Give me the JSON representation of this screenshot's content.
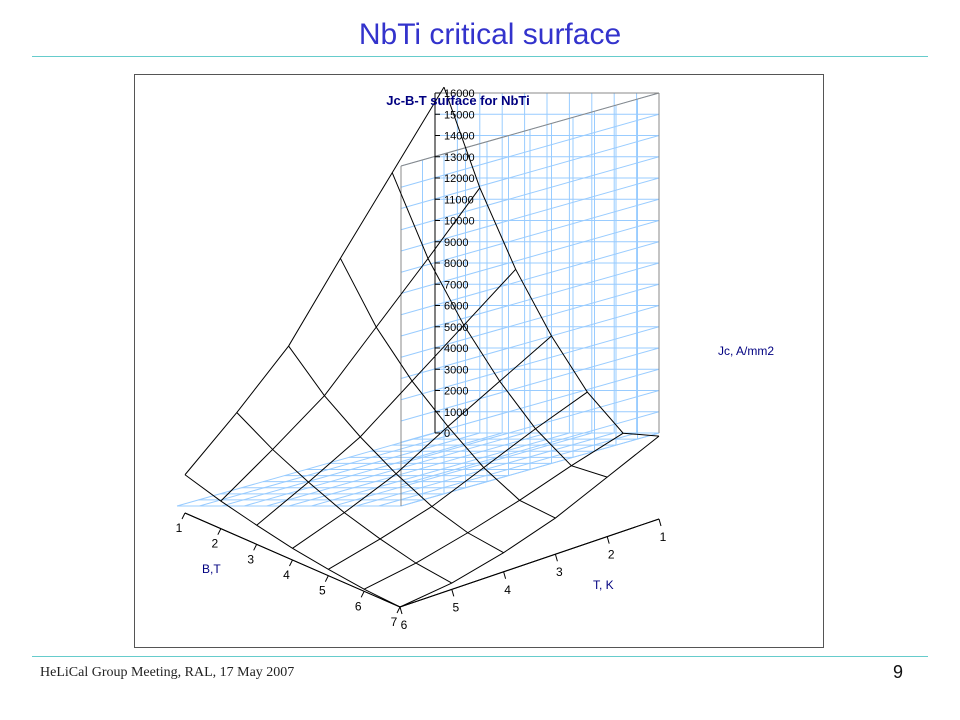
{
  "slide": {
    "title": "NbTi critical surface",
    "footer": "HeLiCal Group Meeting, RAL, 17 May 2007",
    "page_number": "9"
  },
  "colors": {
    "title": "#3333cc",
    "rule": "#66cccc",
    "grid": "#99ccff",
    "surface": "#000000",
    "axis": "#000000"
  },
  "chart_data": {
    "type": "surface",
    "title": "Jc-B-T surface for NbTi",
    "zlabel": "Jc, A/mm2",
    "xlabel": "T, K",
    "ylabel": "B,T",
    "zlim": [
      0,
      16000
    ],
    "z_ticks": [
      0,
      1000,
      2000,
      3000,
      4000,
      5000,
      6000,
      7000,
      8000,
      9000,
      10000,
      11000,
      12000,
      13000,
      14000,
      15000,
      16000
    ],
    "T_ticks": [
      1,
      2,
      3,
      4,
      5,
      6
    ],
    "B_ticks": [
      1,
      2,
      3,
      4,
      5,
      6,
      7
    ],
    "grid": true,
    "T": [
      1,
      2,
      3,
      4,
      5,
      6
    ],
    "B": [
      1,
      2,
      3,
      4,
      5,
      6,
      7
    ],
    "jc_rows_by_B": [
      [
        15900,
        12700,
        9500,
        6200,
        3900,
        1800
      ],
      [
        11900,
        9400,
        7000,
        4600,
        2900,
        1300
      ],
      [
        8800,
        7000,
        5200,
        3400,
        2100,
        900
      ],
      [
        6400,
        5100,
        3800,
        2400,
        1400,
        550
      ],
      [
        4500,
        3600,
        2600,
        1600,
        900,
        300
      ],
      [
        3300,
        2600,
        1800,
        1100,
        500,
        100
      ],
      [
        3900,
        2800,
        1700,
        900,
        300,
        0
      ]
    ]
  }
}
